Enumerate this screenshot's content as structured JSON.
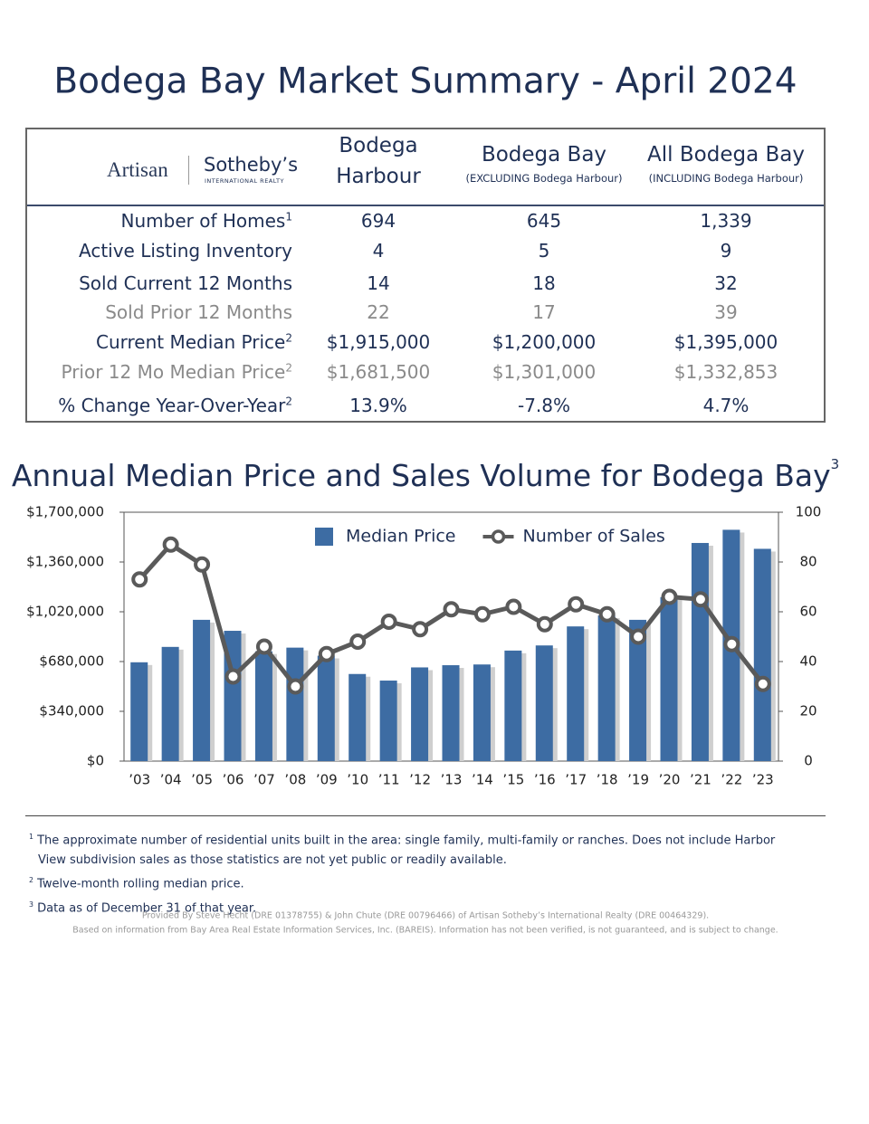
{
  "title": "Bodega Bay Market Summary - April 2024",
  "logo": {
    "brand": "Artisan",
    "name": "Sotheby’s",
    "tagline": "INTERNATIONAL REALTY"
  },
  "table": {
    "columns": [
      {
        "title": "Bodega Harbour"
      },
      {
        "title": "Bodega Bay",
        "note": "(EXCLUDING Bodega Harbour)"
      },
      {
        "title": "All Bodega Bay",
        "note": "(INCLUDING Bodega Harbour)"
      }
    ],
    "rows": [
      {
        "label": "Number of Homes",
        "sup": "1",
        "cells": [
          "694",
          "645",
          "1,339"
        ]
      },
      {
        "label": "Active Listing Inventory",
        "cells": [
          "4",
          "5",
          "9"
        ]
      },
      {
        "label": "Sold Current 12 Months",
        "cells": [
          "14",
          "18",
          "32"
        ]
      },
      {
        "label": "Sold Prior 12 Months",
        "cells": [
          "22",
          "17",
          "39"
        ],
        "muted": true
      },
      {
        "label": "Current Median Price",
        "sup": "2",
        "cells": [
          "$1,915,000",
          "$1,200,000",
          "$1,395,000"
        ]
      },
      {
        "label": "Prior 12 Mo Median Price",
        "sup": "2",
        "cells": [
          "$1,681,500",
          "$1,301,000",
          "$1,332,853"
        ],
        "muted": true
      },
      {
        "label": "% Change Year-Over-Year",
        "sup": "2",
        "cells": [
          "13.9%",
          "-7.8%",
          "4.7%"
        ]
      }
    ]
  },
  "chart_data": {
    "type": "combo",
    "title": "Annual Median Price and Sales Volume for Bodega Bay",
    "title_sup": "3",
    "categories": [
      "’03",
      "’04",
      "’05",
      "’06",
      "’07",
      "’08",
      "’09",
      "’10",
      "’11",
      "’12",
      "’13",
      "’14",
      "’15",
      "’16",
      "’17",
      "’18",
      "’19",
      "’20",
      "’21",
      "’22",
      "’23"
    ],
    "series": [
      {
        "name": "Median Price",
        "type": "bar",
        "color": "#3d6ca3",
        "values": [
          675000,
          780000,
          965000,
          890000,
          750000,
          775000,
          720000,
          595000,
          550000,
          640000,
          655000,
          660000,
          755000,
          790000,
          920000,
          995000,
          965000,
          1120000,
          1490000,
          1580000,
          1450000
        ]
      },
      {
        "name": "Number of Sales",
        "type": "line",
        "color": "#5a5a5a",
        "axis": "y2",
        "values": [
          73,
          87,
          79,
          34,
          46,
          30,
          43,
          48,
          56,
          53,
          61,
          59,
          62,
          55,
          63,
          59,
          50,
          66,
          65,
          47,
          31
        ]
      }
    ],
    "ylim": [
      0,
      1700000
    ],
    "yticks": [
      {
        "value": 0,
        "label": "$0"
      },
      {
        "value": 340000,
        "label": "$340,000"
      },
      {
        "value": 680000,
        "label": "$680,000"
      },
      {
        "value": 1020000,
        "label": "$1,020,000"
      },
      {
        "value": 1360000,
        "label": "$1,360,000"
      },
      {
        "value": 1700000,
        "label": "$1,700,000"
      }
    ],
    "y2lim": [
      0,
      100
    ],
    "y2ticks": [
      0,
      20,
      40,
      60,
      80,
      100
    ],
    "legend": "top"
  },
  "footnotes": [
    {
      "mark": "1",
      "text": "The approximate number of residential units built in the area: single family, multi-family or ranches. Does not include Harbor View subdivision sales as those statistics are not yet public or readily available."
    },
    {
      "mark": "2",
      "text": "Twelve-month rolling median price."
    },
    {
      "mark": "3",
      "text": "Data as of December 31 of that year."
    }
  ],
  "credits": [
    "Provided By Steve Hecht (DRE 01378755) & John Chute (DRE 00796466) of Artisan Sotheby’s International Realty (DRE 00464329).",
    "Based on information from Bay Area Real Estate Information Services, Inc. (BAREIS). Information has not been verified, is not guaranteed, and is subject to change."
  ]
}
